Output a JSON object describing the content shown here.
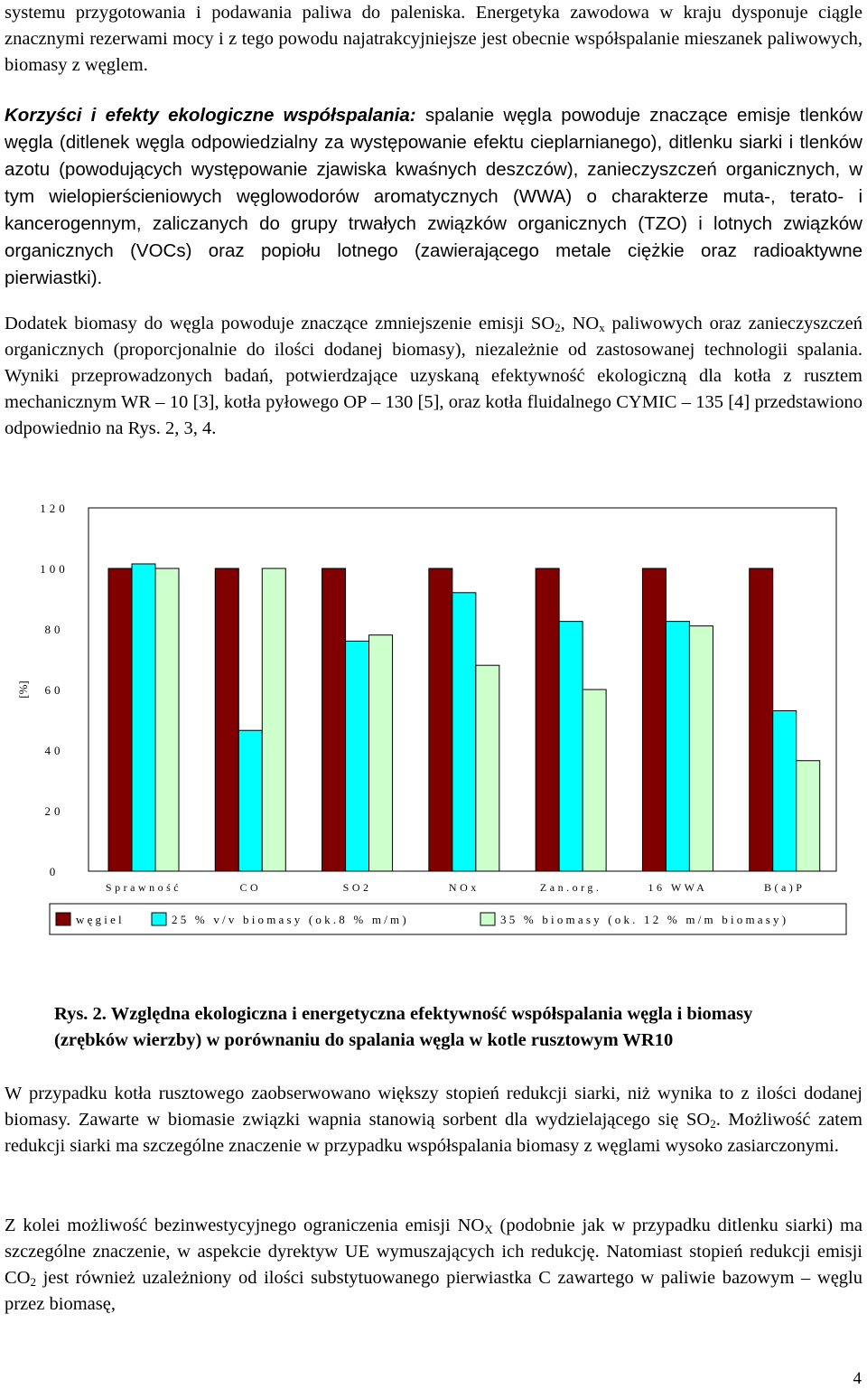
{
  "paragraphs": {
    "p0": "systemu przygotowania i podawania paliwa do paleniska. Energetyka zawodowa w kraju dysponuje ciągle znacznymi rezerwami mocy i z tego powodu najatrakcyjniejsze jest obecnie współspalanie mieszanek paliwowych, biomasy z węglem.",
    "p1_heading": "Korzyści i efekty ekologiczne współspalania:",
    "p1_body": " spalanie węgla powoduje znaczące emisje tlenków węgla (ditlenek węgla odpowiedzialny za występowanie efektu cieplarnianego), ditlenku siarki i tlenków azotu (powodujących występowanie zjawiska kwaśnych deszczów), zanieczyszczeń organicznych, w tym wielopierścieniowych węglowodorów aromatycznych (WWA) o charakterze muta-, terato- i kancerogennym, zaliczanych do grupy trwałych związków organicznych (TZO) i lotnych związków organicznych (VOCs) oraz popiołu lotnego (zawierającego metale ciężkie oraz radioaktywne pierwiastki).",
    "p2_a": "Dodatek biomasy do węgla powoduje znaczące zmniejszenie emisji SO",
    "p2_sub1": "2",
    "p2_b": ", NO",
    "p2_sub2": "x",
    "p2_c": " paliwowych oraz zanieczyszczeń organicznych (proporcjonalnie do ilości dodanej biomasy), niezależnie od zastosowanej technologii spalania. Wyniki przeprowadzonych badań, potwierdzające uzyskaną efektywność ekologiczną dla kotła z rusztem mechanicznym WR – 10 [3], kotła pyłowego OP – 130 [5], oraz kotła fluidalnego CYMIC – 135 [4] przedstawiono odpowiednio na Rys. 2, 3, 4.",
    "caption_line1": "Rys. 2. Względna ekologiczna i energetyczna efektywność współspalania węgla i biomasy",
    "caption_line2": "(zrębków wierzby) w porównaniu do spalania węgla w kotle rusztowym WR10",
    "p3_a": "W przypadku kotła rusztowego zaobserwowano większy stopień redukcji siarki, niż wynika to z ilości dodanej biomasy. Zawarte w biomasie związki wapnia stanowią sorbent dla wydzielającego się SO",
    "p3_sub": "2",
    "p3_b": ". Możliwość zatem redukcji siarki ma szczególne znaczenie w przypadku współspalania biomasy z węglami wysoko zasiarczonymi.",
    "p4_a": "Z kolei możliwość bezinwestycyjnego ograniczenia emisji NO",
    "p4_sub1": "X",
    "p4_b": " (podobnie jak w przypadku ditlenku siarki) ma szczególne znaczenie, w aspekcie dyrektyw UE wymuszających ich redukcję. Natomiast stopień redukcji emisji CO",
    "p4_sub2": "2",
    "p4_c": " jest również uzależniony od ilości substytuowanego pierwiastka C zawartego w paliwie bazowym – węglu przez biomasę,",
    "page_number": "4"
  },
  "chart_data": {
    "type": "bar",
    "ylabel": "[%]",
    "ylim": [
      0,
      120
    ],
    "yticks": [
      "0",
      "20",
      "40",
      "60",
      "80",
      "100",
      "120"
    ],
    "grid": false,
    "legend_position": "bottom",
    "categories": [
      "Sprawność",
      "CO",
      "SO2",
      "NOx",
      "Zan.org.",
      "16 WWA",
      "B(a)P"
    ],
    "series": [
      {
        "name": "węgiel",
        "color": "#800000",
        "values": [
          100,
          100,
          100,
          100,
          100,
          100,
          100
        ]
      },
      {
        "name": "25 % v/v biomasy (ok.8 % m/m)",
        "color": "#00FFFF",
        "values": [
          101.5,
          46.5,
          76,
          92,
          82.5,
          82.5,
          53
        ]
      },
      {
        "name": "35 % biomasy (ok. 12 % m/m biomasy)",
        "color": "#CCFFCC",
        "values": [
          100,
          100,
          78,
          68,
          60,
          81,
          36.5
        ]
      }
    ]
  }
}
